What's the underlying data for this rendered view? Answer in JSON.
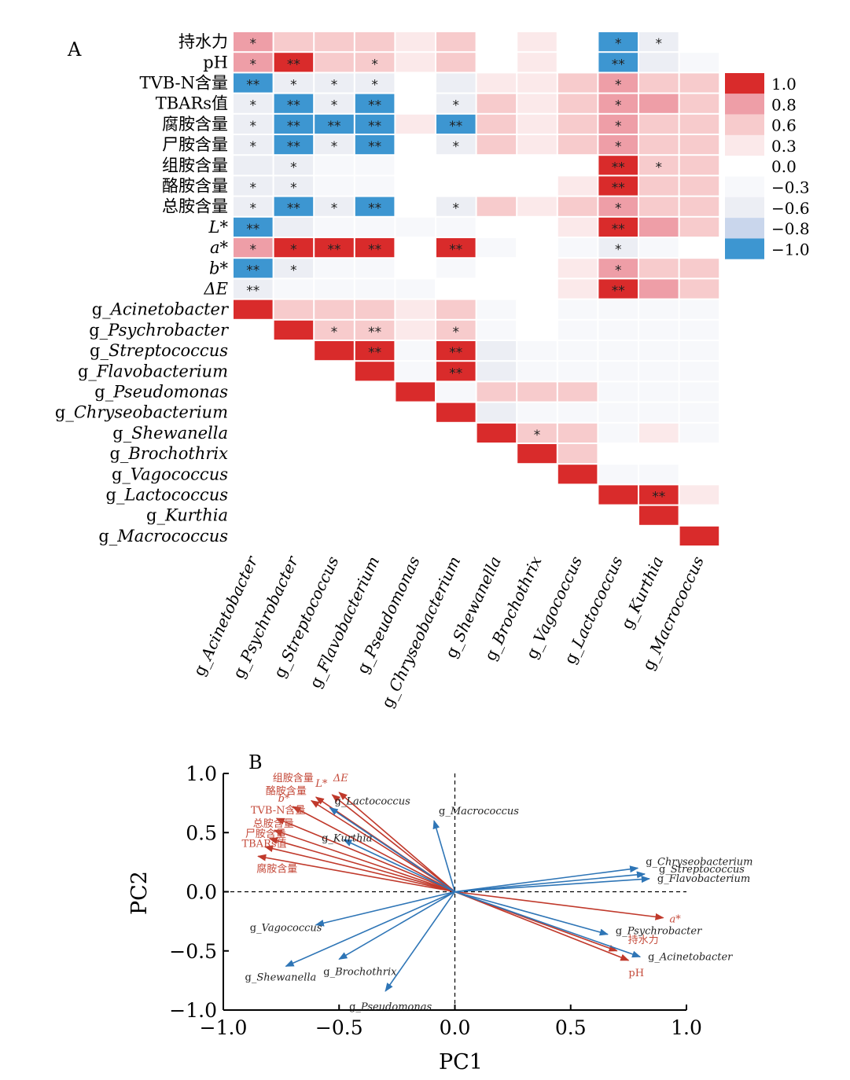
{
  "colors": {
    "positive": "#d92b2b",
    "negative": "#3d96d1",
    "env_arrow": "#c0392b",
    "taxa_arrow": "#2e75b6"
  },
  "chart_data": [
    {
      "type": "heatmap",
      "panel_label": "A",
      "rows": [
        "持水力",
        "pH",
        "TVB-N含量",
        "TBARs值",
        "腐胺含量",
        "尸胺含量",
        "组胺含量",
        "酪胺含量",
        "总胺含量",
        "L*",
        "a*",
        "b*",
        "ΔE",
        "g_Acinetobacter",
        "g_Psychrobacter",
        "g_Streptococcus",
        "g_Flavobacterium",
        "g_Pseudomonas",
        "g_Chryseobacterium",
        "g_Shewanella",
        "g_Brochothrix",
        "g_Vagococcus",
        "g_Lactococcus",
        "g_Kurthia",
        "g_Macrococcus"
      ],
      "row_italic": [
        false,
        false,
        false,
        false,
        false,
        false,
        false,
        false,
        false,
        "partial",
        "partial",
        "partial",
        "partial",
        true,
        true,
        true,
        true,
        true,
        true,
        true,
        true,
        true,
        true,
        true,
        true
      ],
      "columns": [
        "g_Acinetobacter",
        "g_Psychrobacter",
        "g_Streptococcus",
        "g_Flavobacterium",
        "g_Pseudomonas",
        "g_Chryseobacterium",
        "g_Shewanella",
        "g_Brochothrix",
        "g_Vagococcus",
        "g_Lactococcus",
        "g_Kurthia",
        "g_Macrococcus"
      ],
      "values": [
        [
          0.8,
          0.5,
          0.5,
          0.5,
          0.2,
          0.5,
          -0.1,
          0.2,
          -0.1,
          -1.0,
          -0.7,
          -0.1
        ],
        [
          0.8,
          1.0,
          0.7,
          0.7,
          0.2,
          0.7,
          -0.1,
          0.2,
          -0.1,
          -1.0,
          -0.7,
          -0.3
        ],
        [
          -1.0,
          -0.7,
          -0.7,
          -0.7,
          -0.1,
          -0.7,
          0.2,
          0.2,
          0.5,
          0.8,
          0.5,
          0.5
        ],
        [
          -0.7,
          -1.0,
          -0.7,
          -1.0,
          -0.1,
          -0.7,
          0.5,
          0.2,
          0.5,
          0.8,
          0.8,
          0.5
        ],
        [
          -0.7,
          -1.0,
          -1.0,
          -1.0,
          0.2,
          -1.0,
          0.5,
          0.2,
          0.5,
          0.8,
          0.5,
          0.5
        ],
        [
          -0.7,
          -1.0,
          -0.7,
          -1.0,
          -0.1,
          -0.7,
          0.5,
          0.2,
          0.5,
          0.8,
          0.5,
          0.5
        ],
        [
          -0.7,
          -0.7,
          -0.3,
          -0.3,
          -0.1,
          -0.1,
          -0.1,
          -0.1,
          -0.1,
          1.0,
          0.7,
          0.5
        ],
        [
          -0.7,
          -0.7,
          -0.3,
          -0.3,
          -0.1,
          -0.1,
          -0.1,
          -0.1,
          0.2,
          1.0,
          0.5,
          0.5
        ],
        [
          -0.7,
          -1.0,
          -0.7,
          -1.0,
          -0.1,
          -0.7,
          0.5,
          0.2,
          0.5,
          0.8,
          0.5,
          0.5
        ],
        [
          -1.0,
          -0.7,
          -0.3,
          -0.3,
          -0.3,
          -0.3,
          -0.1,
          -0.1,
          0.2,
          1.0,
          0.8,
          0.5
        ],
        [
          0.8,
          1.0,
          1.0,
          1.0,
          -0.1,
          1.0,
          -0.3,
          -0.1,
          -0.3,
          -0.7,
          -0.3,
          -0.1
        ],
        [
          -1.0,
          -0.7,
          -0.3,
          -0.3,
          -0.1,
          -0.3,
          -0.1,
          -0.1,
          0.2,
          0.8,
          0.5,
          0.5
        ],
        [
          -0.7,
          -0.3,
          -0.3,
          -0.3,
          -0.3,
          -0.1,
          -0.1,
          -0.1,
          0.2,
          1.0,
          0.8,
          0.5
        ],
        [
          1.0,
          0.5,
          0.5,
          0.5,
          0.2,
          0.5,
          -0.3,
          -0.1,
          -0.3,
          -0.3,
          -0.3,
          -0.3
        ],
        [
          null,
          1.0,
          0.7,
          0.7,
          0.2,
          0.7,
          -0.3,
          -0.1,
          -0.3,
          -0.3,
          -0.3,
          -0.3
        ],
        [
          null,
          null,
          1.0,
          1.0,
          -0.3,
          1.0,
          -0.7,
          -0.3,
          -0.3,
          -0.3,
          -0.3,
          -0.3
        ],
        [
          null,
          null,
          null,
          1.0,
          -0.3,
          1.0,
          -0.7,
          -0.3,
          -0.3,
          -0.3,
          -0.3,
          -0.3
        ],
        [
          null,
          null,
          null,
          null,
          1.0,
          -0.3,
          0.7,
          0.5,
          0.5,
          -0.3,
          -0.3,
          -0.3
        ],
        [
          null,
          null,
          null,
          null,
          null,
          1.0,
          -0.7,
          -0.3,
          -0.3,
          -0.3,
          -0.3,
          -0.3
        ],
        [
          null,
          null,
          null,
          null,
          null,
          null,
          1.0,
          0.7,
          0.7,
          -0.3,
          0.2,
          -0.3
        ],
        [
          null,
          null,
          null,
          null,
          null,
          null,
          null,
          1.0,
          0.5,
          -0.1,
          -0.1,
          -0.1
        ],
        [
          null,
          null,
          null,
          null,
          null,
          null,
          null,
          null,
          1.0,
          -0.3,
          -0.3,
          -0.1
        ],
        [
          null,
          null,
          null,
          null,
          null,
          null,
          null,
          null,
          null,
          1.0,
          1.0,
          0.2
        ],
        [
          null,
          null,
          null,
          null,
          null,
          null,
          null,
          null,
          null,
          null,
          1.0,
          -0.1
        ],
        [
          null,
          null,
          null,
          null,
          null,
          null,
          null,
          null,
          null,
          null,
          null,
          1.0
        ]
      ],
      "significance": [
        [
          "*",
          "",
          "",
          "",
          "",
          "",
          "",
          "",
          "",
          "*",
          "*",
          ""
        ],
        [
          "*",
          "**",
          "",
          "*",
          "",
          "",
          "",
          "",
          "",
          "**",
          "",
          ""
        ],
        [
          "**",
          "*",
          "*",
          "*",
          "",
          "",
          "",
          "",
          "",
          "*",
          "",
          ""
        ],
        [
          "*",
          "**",
          "*",
          "**",
          "",
          "*",
          "",
          "",
          "",
          "*",
          "",
          ""
        ],
        [
          "*",
          "**",
          "**",
          "**",
          "",
          "**",
          "",
          "",
          "",
          "*",
          "",
          ""
        ],
        [
          "*",
          "**",
          "*",
          "**",
          "",
          "*",
          "",
          "",
          "",
          "*",
          "",
          ""
        ],
        [
          "",
          "*",
          "",
          "",
          "",
          "",
          "",
          "",
          "",
          "**",
          "*",
          ""
        ],
        [
          "*",
          "*",
          "",
          "",
          "",
          "",
          "",
          "",
          "",
          "**",
          "",
          ""
        ],
        [
          "*",
          "**",
          "*",
          "**",
          "",
          "*",
          "",
          "",
          "",
          "*",
          "",
          ""
        ],
        [
          "**",
          "",
          "",
          "",
          "",
          "",
          "",
          "",
          "",
          "**",
          "",
          ""
        ],
        [
          "*",
          "*",
          "**",
          "**",
          "",
          "**",
          "",
          "",
          "",
          "*",
          "",
          ""
        ],
        [
          "**",
          "*",
          "",
          "",
          "",
          "",
          "",
          "",
          "",
          "*",
          "",
          ""
        ],
        [
          "**",
          "",
          "",
          "",
          "",
          "",
          "",
          "",
          "",
          "**",
          "",
          ""
        ],
        [
          "",
          "",
          "",
          "",
          "",
          "",
          "",
          "",
          "",
          "",
          "",
          ""
        ],
        [
          "",
          "",
          "*",
          "**",
          "",
          "*",
          "",
          "",
          "",
          "",
          "",
          ""
        ],
        [
          "",
          "",
          "",
          "**",
          "",
          "**",
          "",
          "",
          "",
          "",
          "",
          ""
        ],
        [
          "",
          "",
          "",
          "",
          "",
          "**",
          "",
          "",
          "",
          "",
          "",
          ""
        ],
        [
          "",
          "",
          "",
          "",
          "",
          "",
          "",
          "",
          "",
          "",
          "",
          ""
        ],
        [
          "",
          "",
          "",
          "",
          "",
          "",
          "",
          "",
          "",
          "",
          "",
          ""
        ],
        [
          "",
          "",
          "",
          "",
          "",
          "",
          "",
          "*",
          "",
          "",
          "",
          ""
        ],
        [
          "",
          "",
          "",
          "",
          "",
          "",
          "",
          "",
          "",
          "",
          "",
          ""
        ],
        [
          "",
          "",
          "",
          "",
          "",
          "",
          "",
          "",
          "",
          "",
          "",
          ""
        ],
        [
          "",
          "",
          "",
          "",
          "",
          "",
          "",
          "",
          "",
          "",
          "**",
          ""
        ],
        [
          "",
          "",
          "",
          "",
          "",
          "",
          "",
          "",
          "",
          "",
          "",
          ""
        ],
        [
          "",
          "",
          "",
          "",
          "",
          "",
          "",
          "",
          "",
          "",
          "",
          ""
        ]
      ],
      "legend": {
        "ticks": [
          "1.0",
          "0.8",
          "0.6",
          "0.3",
          "0.0",
          "−0.3",
          "−0.6",
          "−0.8",
          "−1.0"
        ],
        "levels": [
          1.0,
          0.8,
          0.6,
          0.3,
          0.0,
          -0.3,
          -0.6,
          -0.8,
          -1.0
        ]
      }
    },
    {
      "type": "scatter",
      "subtype": "biplot",
      "panel_label": "B",
      "xlabel": "PC1",
      "ylabel": "PC2",
      "xlim": [
        -1.0,
        1.0
      ],
      "ylim": [
        -1.0,
        1.0
      ],
      "xticks": [
        "−1.0",
        "−0.5",
        "0.0",
        "0.5",
        "1.0"
      ],
      "yticks": [
        "1.0",
        "0.5",
        "0.0",
        "−0.5",
        "−1.0"
      ],
      "xtick_values": [
        -1.0,
        -0.5,
        0.0,
        0.5,
        1.0
      ],
      "ytick_values": [
        1.0,
        0.5,
        0.0,
        -0.5,
        -1.0
      ],
      "series": [
        {
          "group": "env",
          "vectors": [
            {
              "label": "组胺含量",
              "x": -0.6,
              "y": 0.8
            },
            {
              "label": "ΔE",
              "x": -0.5,
              "y": 0.84
            },
            {
              "label": "L*",
              "x": -0.53,
              "y": 0.82
            },
            {
              "label": "酪胺含量",
              "x": -0.62,
              "y": 0.77
            },
            {
              "label": "b*",
              "x": -0.7,
              "y": 0.72
            },
            {
              "label": "TVB-N含量",
              "x": -0.77,
              "y": 0.62
            },
            {
              "label": "总胺含量",
              "x": -0.78,
              "y": 0.52
            },
            {
              "label": "尸胺含量",
              "x": -0.8,
              "y": 0.45
            },
            {
              "label": "TBARs值",
              "x": -0.82,
              "y": 0.38
            },
            {
              "label": "腐胺含量",
              "x": -0.85,
              "y": 0.3
            },
            {
              "label": "a*",
              "x": 0.9,
              "y": -0.22
            },
            {
              "label": "持水力",
              "x": 0.7,
              "y": -0.5
            },
            {
              "label": "pH",
              "x": 0.75,
              "y": -0.58
            }
          ]
        },
        {
          "group": "taxa",
          "vectors": [
            {
              "label": "g_Lactococcus",
              "x": -0.54,
              "y": 0.71
            },
            {
              "label": "g_Macrococcus",
              "x": -0.09,
              "y": 0.6
            },
            {
              "label": "g_Kurthia",
              "x": -0.48,
              "y": 0.44
            },
            {
              "label": "g_Chryseobacterium",
              "x": 0.79,
              "y": 0.2
            },
            {
              "label": "g_Streptococcus",
              "x": 0.82,
              "y": 0.15
            },
            {
              "label": "g_Flavobacterium",
              "x": 0.84,
              "y": 0.11
            },
            {
              "label": "g_Psychrobacter",
              "x": 0.66,
              "y": -0.36
            },
            {
              "label": "g_Acinetobacter",
              "x": 0.8,
              "y": -0.55
            },
            {
              "label": "g_Vagococcus",
              "x": -0.6,
              "y": -0.28
            },
            {
              "label": "g_Brochothrix",
              "x": -0.5,
              "y": -0.57
            },
            {
              "label": "g_Shewanella",
              "x": -0.73,
              "y": -0.63
            },
            {
              "label": "g_Pseudomonas",
              "x": -0.3,
              "y": -0.84
            }
          ]
        }
      ]
    }
  ]
}
